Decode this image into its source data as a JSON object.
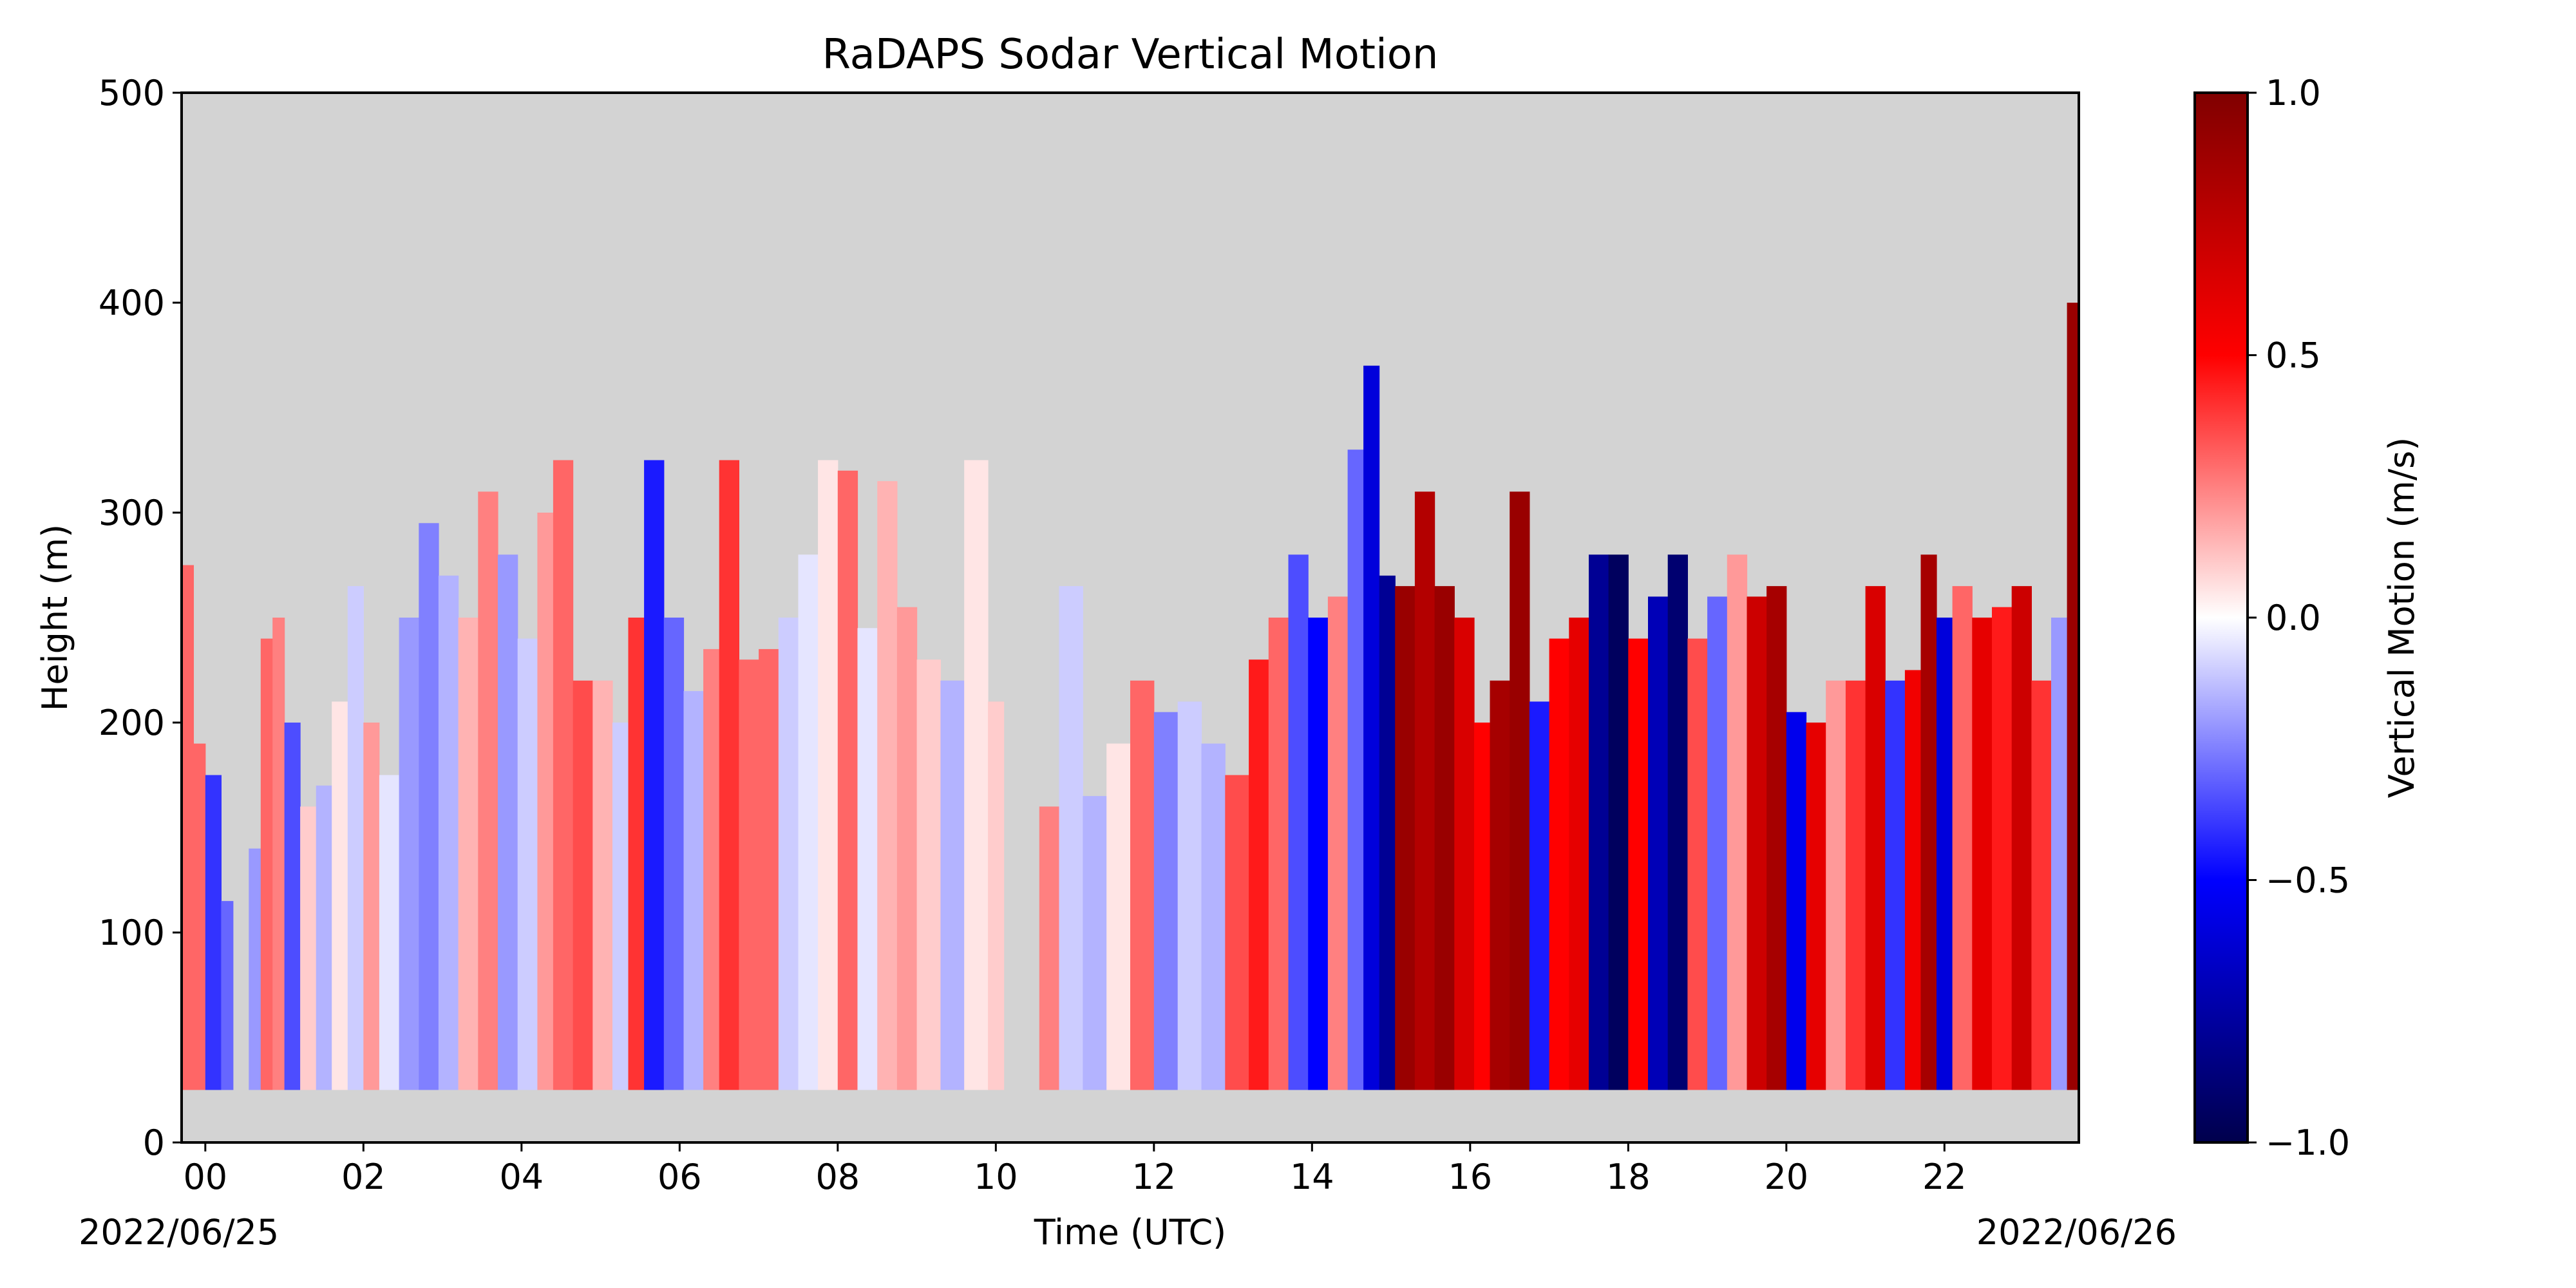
{
  "chart_data": {
    "type": "heatmap",
    "title": "RaDAPS Sodar Vertical Motion",
    "xlabel": "Time (UTC)",
    "ylabel": "Height (m)",
    "x_start_label": "2022/06/25",
    "x_end_label": "2022/06/26",
    "xlim_hours": [
      -0.3,
      23.7
    ],
    "ylim": [
      0,
      500
    ],
    "x_ticks": [
      0,
      2,
      4,
      6,
      8,
      10,
      12,
      14,
      16,
      18,
      20,
      22
    ],
    "x_tick_labels": [
      "00",
      "02",
      "04",
      "06",
      "08",
      "10",
      "12",
      "14",
      "16",
      "18",
      "20",
      "22"
    ],
    "y_ticks": [
      0,
      100,
      200,
      300,
      400,
      500
    ],
    "y_tick_labels": [
      "0",
      "100",
      "200",
      "300",
      "400",
      "500"
    ],
    "background_color": "#d3d3d3",
    "colormap": "seismic",
    "colorbar": {
      "label": "Vertical Motion (m/s)",
      "range": [
        -1.0,
        1.0
      ],
      "ticks": [
        1.0,
        0.5,
        0.0,
        -0.5,
        -1.0
      ],
      "tick_labels": [
        "1.0",
        "0.5",
        "0.0",
        "−0.5",
        "−1.0"
      ]
    },
    "data_min_height": 25,
    "columns": [
      {
        "t": -0.3,
        "top": 275,
        "w": 0.3
      },
      {
        "t": -0.15,
        "top": 190,
        "w": 0.3
      },
      {
        "t": 0.0,
        "top": 175,
        "w": -0.4
      },
      {
        "t": 0.2,
        "top": 115,
        "w": -0.3
      },
      {
        "t": 0.35,
        "top": 25,
        "w": 0.0
      },
      {
        "t": 0.55,
        "top": 140,
        "w": -0.2
      },
      {
        "t": 0.7,
        "top": 240,
        "w": 0.3
      },
      {
        "t": 0.85,
        "top": 250,
        "w": 0.25
      },
      {
        "t": 1.0,
        "top": 200,
        "w": -0.35
      },
      {
        "t": 1.2,
        "top": 160,
        "w": 0.1
      },
      {
        "t": 1.4,
        "top": 170,
        "w": -0.15
      },
      {
        "t": 1.6,
        "top": 210,
        "w": 0.05
      },
      {
        "t": 1.8,
        "top": 265,
        "w": -0.1
      },
      {
        "t": 2.0,
        "top": 200,
        "w": 0.2
      },
      {
        "t": 2.2,
        "top": 175,
        "w": -0.05
      },
      {
        "t": 2.45,
        "top": 250,
        "w": -0.2
      },
      {
        "t": 2.7,
        "top": 295,
        "w": -0.25
      },
      {
        "t": 2.95,
        "top": 270,
        "w": -0.15
      },
      {
        "t": 3.2,
        "top": 250,
        "w": 0.15
      },
      {
        "t": 3.45,
        "top": 310,
        "w": 0.25
      },
      {
        "t": 3.7,
        "top": 280,
        "w": -0.2
      },
      {
        "t": 3.95,
        "top": 240,
        "w": -0.1
      },
      {
        "t": 4.2,
        "top": 300,
        "w": 0.2
      },
      {
        "t": 4.4,
        "top": 325,
        "w": 0.3
      },
      {
        "t": 4.65,
        "top": 220,
        "w": 0.35
      },
      {
        "t": 4.9,
        "top": 220,
        "w": 0.15
      },
      {
        "t": 5.15,
        "top": 200,
        "w": -0.1
      },
      {
        "t": 5.35,
        "top": 250,
        "w": 0.4
      },
      {
        "t": 5.55,
        "top": 325,
        "w": -0.45
      },
      {
        "t": 5.8,
        "top": 250,
        "w": -0.3
      },
      {
        "t": 6.05,
        "top": 215,
        "w": -0.15
      },
      {
        "t": 6.3,
        "top": 235,
        "w": 0.25
      },
      {
        "t": 6.5,
        "top": 325,
        "w": 0.4
      },
      {
        "t": 6.75,
        "top": 230,
        "w": 0.3
      },
      {
        "t": 7.0,
        "top": 235,
        "w": 0.3
      },
      {
        "t": 7.25,
        "top": 250,
        "w": -0.1
      },
      {
        "t": 7.5,
        "top": 280,
        "w": -0.05
      },
      {
        "t": 7.75,
        "top": 325,
        "w": 0.05
      },
      {
        "t": 8.0,
        "top": 320,
        "w": 0.3
      },
      {
        "t": 8.25,
        "top": 245,
        "w": -0.05
      },
      {
        "t": 8.5,
        "top": 315,
        "w": 0.15
      },
      {
        "t": 8.75,
        "top": 255,
        "w": 0.2
      },
      {
        "t": 9.0,
        "top": 230,
        "w": 0.1
      },
      {
        "t": 9.3,
        "top": 220,
        "w": -0.15
      },
      {
        "t": 9.6,
        "top": 325,
        "w": 0.05
      },
      {
        "t": 9.9,
        "top": 210,
        "w": 0.1
      },
      {
        "t": 10.1,
        "top": null,
        "w": 0.0
      },
      {
        "t": 10.35,
        "top": null,
        "w": 0.0
      },
      {
        "t": 10.55,
        "top": 160,
        "w": 0.25
      },
      {
        "t": 10.8,
        "top": 265,
        "w": -0.1
      },
      {
        "t": 11.1,
        "top": 165,
        "w": -0.15
      },
      {
        "t": 11.4,
        "top": 190,
        "w": 0.05
      },
      {
        "t": 11.7,
        "top": 220,
        "w": 0.3
      },
      {
        "t": 12.0,
        "top": 205,
        "w": -0.25
      },
      {
        "t": 12.3,
        "top": 210,
        "w": -0.1
      },
      {
        "t": 12.6,
        "top": 190,
        "w": -0.15
      },
      {
        "t": 12.9,
        "top": 175,
        "w": 0.35
      },
      {
        "t": 13.2,
        "top": 230,
        "w": 0.45
      },
      {
        "t": 13.45,
        "top": 250,
        "w": 0.3
      },
      {
        "t": 13.7,
        "top": 280,
        "w": -0.35
      },
      {
        "t": 13.95,
        "top": 250,
        "w": -0.5
      },
      {
        "t": 14.2,
        "top": 260,
        "w": 0.25
      },
      {
        "t": 14.45,
        "top": 330,
        "w": -0.3
      },
      {
        "t": 14.65,
        "top": 370,
        "w": -0.6
      },
      {
        "t": 14.85,
        "top": 270,
        "w": -0.8
      },
      {
        "t": 15.05,
        "top": 265,
        "w": 0.9
      },
      {
        "t": 15.3,
        "top": 310,
        "w": 0.8
      },
      {
        "t": 15.55,
        "top": 265,
        "w": 0.9
      },
      {
        "t": 15.8,
        "top": 250,
        "w": 0.65
      },
      {
        "t": 16.05,
        "top": 200,
        "w": 0.5
      },
      {
        "t": 16.25,
        "top": 220,
        "w": 0.85
      },
      {
        "t": 16.5,
        "top": 310,
        "w": 0.9
      },
      {
        "t": 16.75,
        "top": 210,
        "w": -0.45
      },
      {
        "t": 17.0,
        "top": 240,
        "w": 0.5
      },
      {
        "t": 17.25,
        "top": 250,
        "w": 0.6
      },
      {
        "t": 17.5,
        "top": 280,
        "w": -0.8
      },
      {
        "t": 17.75,
        "top": 280,
        "w": -0.95
      },
      {
        "t": 18.0,
        "top": 240,
        "w": 0.5
      },
      {
        "t": 18.25,
        "top": 260,
        "w": -0.7
      },
      {
        "t": 18.5,
        "top": 280,
        "w": -0.9
      },
      {
        "t": 18.75,
        "top": 240,
        "w": 0.35
      },
      {
        "t": 19.0,
        "top": 260,
        "w": -0.3
      },
      {
        "t": 19.25,
        "top": 280,
        "w": 0.2
      },
      {
        "t": 19.5,
        "top": 260,
        "w": 0.7
      },
      {
        "t": 19.75,
        "top": 265,
        "w": 0.85
      },
      {
        "t": 20.0,
        "top": 205,
        "w": -0.55
      },
      {
        "t": 20.25,
        "top": 200,
        "w": 0.6
      },
      {
        "t": 20.5,
        "top": 220,
        "w": 0.2
      },
      {
        "t": 20.75,
        "top": 220,
        "w": 0.4
      },
      {
        "t": 21.0,
        "top": 265,
        "w": 0.65
      },
      {
        "t": 21.25,
        "top": 220,
        "w": -0.4
      },
      {
        "t": 21.5,
        "top": 225,
        "w": 0.55
      },
      {
        "t": 21.7,
        "top": 280,
        "w": 0.85
      },
      {
        "t": 21.9,
        "top": 250,
        "w": -0.6
      },
      {
        "t": 22.1,
        "top": 265,
        "w": 0.3
      },
      {
        "t": 22.35,
        "top": 250,
        "w": 0.6
      },
      {
        "t": 22.6,
        "top": 255,
        "w": 0.45
      },
      {
        "t": 22.85,
        "top": 265,
        "w": 0.7
      },
      {
        "t": 23.1,
        "top": 220,
        "w": 0.4
      },
      {
        "t": 23.35,
        "top": 250,
        "w": -0.2
      },
      {
        "t": 23.55,
        "top": 400,
        "w": 0.9
      }
    ]
  }
}
